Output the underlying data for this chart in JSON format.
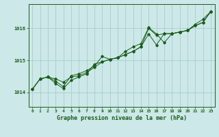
{
  "title": "Graphe pression niveau de la mer (hPa)",
  "bg_color": "#cce8e8",
  "grid_color": "#aacccc",
  "line_color": "#1a5c1a",
  "x_labels": [
    "0",
    "1",
    "2",
    "3",
    "4",
    "5",
    "6",
    "7",
    "8",
    "9",
    "10",
    "11",
    "12",
    "13",
    "14",
    "15",
    "16",
    "17",
    "18",
    "19",
    "20",
    "21",
    "22",
    "23"
  ],
  "y_ticks": [
    1014,
    1015,
    1016
  ],
  "ylim": [
    1013.55,
    1016.75
  ],
  "xlim": [
    -0.5,
    23.5
  ],
  "series": {
    "line1": [
      1014.1,
      1014.42,
      1014.48,
      1014.42,
      1014.32,
      1014.48,
      1014.52,
      1014.62,
      1014.78,
      1014.95,
      1015.03,
      1015.08,
      1015.18,
      1015.28,
      1015.42,
      1016.0,
      1015.78,
      1015.83,
      1015.83,
      1015.88,
      1015.93,
      1016.08,
      1016.18,
      1016.52
    ],
    "line2": [
      1014.1,
      1014.42,
      1014.48,
      1014.28,
      1014.12,
      1014.38,
      1014.48,
      1014.58,
      1014.88,
      1014.95,
      1015.03,
      1015.08,
      1015.18,
      1015.28,
      1015.42,
      1015.82,
      1015.48,
      1015.83,
      1015.83,
      1015.88,
      1015.93,
      1016.08,
      1016.18,
      1016.52
    ],
    "line3": [
      1014.1,
      1014.42,
      1014.48,
      1014.35,
      1014.18,
      1014.52,
      1014.58,
      1014.68,
      1014.82,
      1015.12,
      1015.03,
      1015.08,
      1015.28,
      1015.42,
      1015.52,
      1016.02,
      1015.82,
      1015.55,
      1015.83,
      1015.88,
      1015.93,
      1016.12,
      1016.28,
      1016.52
    ]
  }
}
